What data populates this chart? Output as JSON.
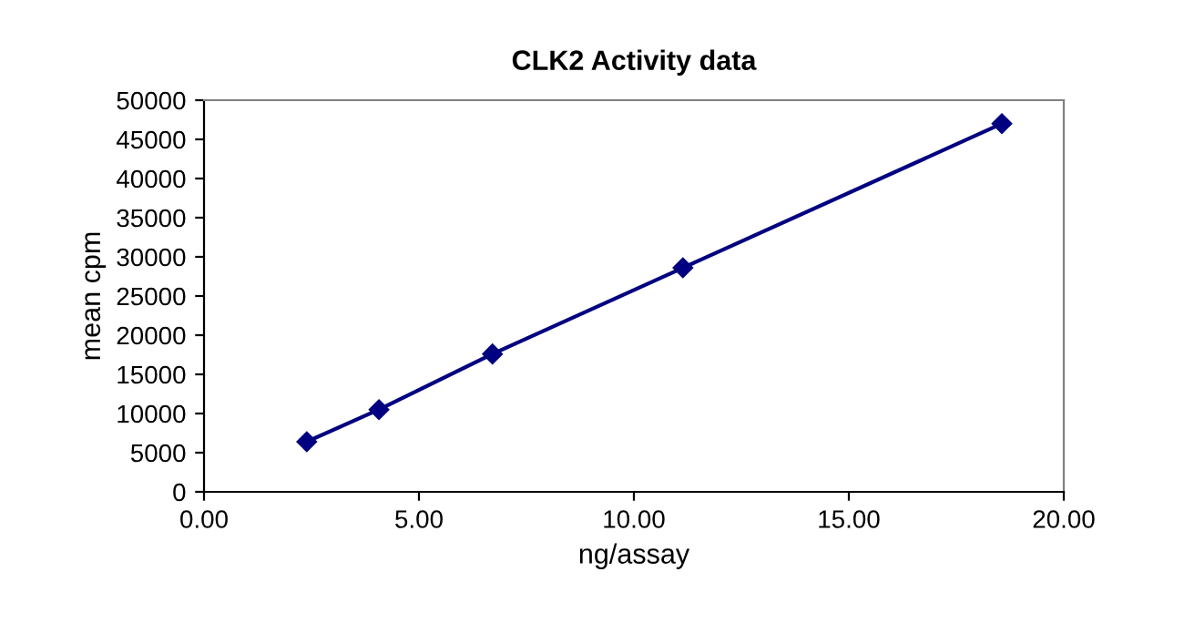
{
  "chart_data": {
    "type": "line",
    "title": "CLK2 Activity data",
    "xlabel": "ng/assay",
    "ylabel": "mean cpm",
    "x": [
      2.39,
      4.07,
      6.71,
      11.14,
      18.56
    ],
    "series": [
      {
        "color": "#000080",
        "values": [
          6400,
          10500,
          17600,
          28600,
          47000
        ]
      }
    ],
    "xlim": [
      0,
      20
    ],
    "xticks": [
      {
        "value": 0,
        "label": "0.00"
      },
      {
        "value": 5,
        "label": "5.00"
      },
      {
        "value": 10,
        "label": "10.00"
      },
      {
        "value": 15,
        "label": "15.00"
      },
      {
        "value": 20,
        "label": "20.00"
      }
    ],
    "ylim": [
      0,
      50000
    ],
    "yticks": [
      0,
      5000,
      10000,
      15000,
      20000,
      25000,
      30000,
      35000,
      40000,
      45000,
      50000
    ],
    "grid": false,
    "legend": false,
    "marker": "diamond",
    "line_style": "solid"
  }
}
